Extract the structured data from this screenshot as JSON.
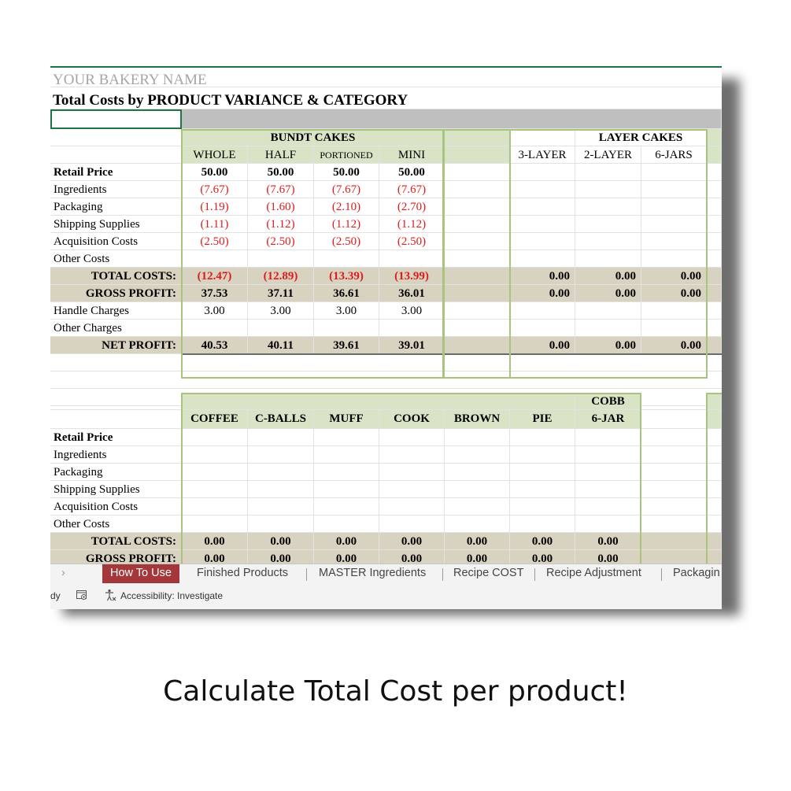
{
  "sheet": {
    "title": "YOUR BAKERY NAME",
    "subtitle": "Total Costs by PRODUCT VARIANCE & CATEGORY",
    "section1": {
      "group1": "BUNDT CAKES",
      "group2": "LAYER CAKES",
      "columns": [
        "WHOLE",
        "HALF",
        "PORTIONED",
        "MINI",
        "",
        "",
        "3-LAYER",
        "2-LAYER",
        "6-JARS",
        ""
      ],
      "rows": [
        {
          "label": "Retail Price",
          "values": [
            "50.00",
            "50.00",
            "50.00",
            "50.00",
            "",
            "",
            "",
            "",
            "",
            ""
          ]
        },
        {
          "label": "Ingredients",
          "values": [
            "(7.67)",
            "(7.67)",
            "(7.67)",
            "(7.67)",
            "",
            "",
            "",
            "",
            "",
            ""
          ]
        },
        {
          "label": "Packaging",
          "values": [
            "(1.19)",
            "(1.60)",
            "(2.10)",
            "(2.70)",
            "",
            "",
            "",
            "",
            "",
            ""
          ]
        },
        {
          "label": "Shipping Supplies",
          "values": [
            "(1.11)",
            "(1.12)",
            "(1.12)",
            "(1.12)",
            "",
            "",
            "",
            "",
            "",
            ""
          ]
        },
        {
          "label": "Acquisition Costs",
          "values": [
            "(2.50)",
            "(2.50)",
            "(2.50)",
            "(2.50)",
            "",
            "",
            "",
            "",
            "",
            ""
          ]
        },
        {
          "label": "Other Costs",
          "values": [
            "",
            "",
            "",
            "",
            "",
            "",
            "",
            "",
            "",
            ""
          ]
        },
        {
          "label": "TOTAL COSTS:",
          "values": [
            "(12.47)",
            "(12.89)",
            "(13.39)",
            "(13.99)",
            "",
            "",
            "0.00",
            "0.00",
            "0.00",
            ""
          ]
        },
        {
          "label": "GROSS PROFIT:",
          "values": [
            "37.53",
            "37.11",
            "36.61",
            "36.01",
            "",
            "",
            "0.00",
            "0.00",
            "0.00",
            ""
          ]
        },
        {
          "label": "Handle Charges",
          "values": [
            "3.00",
            "3.00",
            "3.00",
            "3.00",
            "",
            "",
            "",
            "",
            "",
            ""
          ]
        },
        {
          "label": "Other Charges",
          "values": [
            "",
            "",
            "",
            "",
            "",
            "",
            "",
            "",
            "",
            ""
          ]
        },
        {
          "label": "NET PROFIT:",
          "values": [
            "40.53",
            "40.11",
            "39.61",
            "39.01",
            "",
            "",
            "0.00",
            "0.00",
            "0.00",
            ""
          ]
        }
      ]
    },
    "section2": {
      "top_header": "COBB",
      "columns": [
        "COFFEE",
        "C-BALLS",
        "MUFF",
        "COOK",
        "BROWN",
        "PIE",
        "6-JAR",
        "",
        "",
        ""
      ],
      "rows": [
        {
          "label": "Retail Price",
          "values": [
            "",
            "",
            "",
            "",
            "",
            "",
            "",
            "",
            "",
            ""
          ]
        },
        {
          "label": "Ingredients",
          "values": [
            "",
            "",
            "",
            "",
            "",
            "",
            "",
            "",
            "",
            ""
          ]
        },
        {
          "label": "Packaging",
          "values": [
            "",
            "",
            "",
            "",
            "",
            "",
            "",
            "",
            "",
            ""
          ]
        },
        {
          "label": "Shipping Supplies",
          "values": [
            "",
            "",
            "",
            "",
            "",
            "",
            "",
            "",
            "",
            ""
          ]
        },
        {
          "label": "Acquisition Costs",
          "values": [
            "",
            "",
            "",
            "",
            "",
            "",
            "",
            "",
            "",
            ""
          ]
        },
        {
          "label": "Other Costs",
          "values": [
            "",
            "",
            "",
            "",
            "",
            "",
            "",
            "",
            "",
            ""
          ]
        },
        {
          "label": "TOTAL COSTS:",
          "values": [
            "0.00",
            "0.00",
            "0.00",
            "0.00",
            "0.00",
            "0.00",
            "0.00",
            "",
            "",
            ""
          ]
        },
        {
          "label": "GROSS PROFIT:",
          "values": [
            "0.00",
            "0.00",
            "0.00",
            "0.00",
            "0.00",
            "0.00",
            "0.00",
            "",
            "",
            ""
          ]
        }
      ]
    }
  },
  "tabs": {
    "nav_arrow": "›",
    "items": [
      "How To Use",
      "Finished Products",
      "MASTER Ingredients",
      "Recipe COST",
      "Recipe Adjustment",
      "Packagin"
    ]
  },
  "status": {
    "ready": "dy",
    "accessibility": "Accessibility: Investigate"
  },
  "caption": "Calculate Total Cost per product!"
}
